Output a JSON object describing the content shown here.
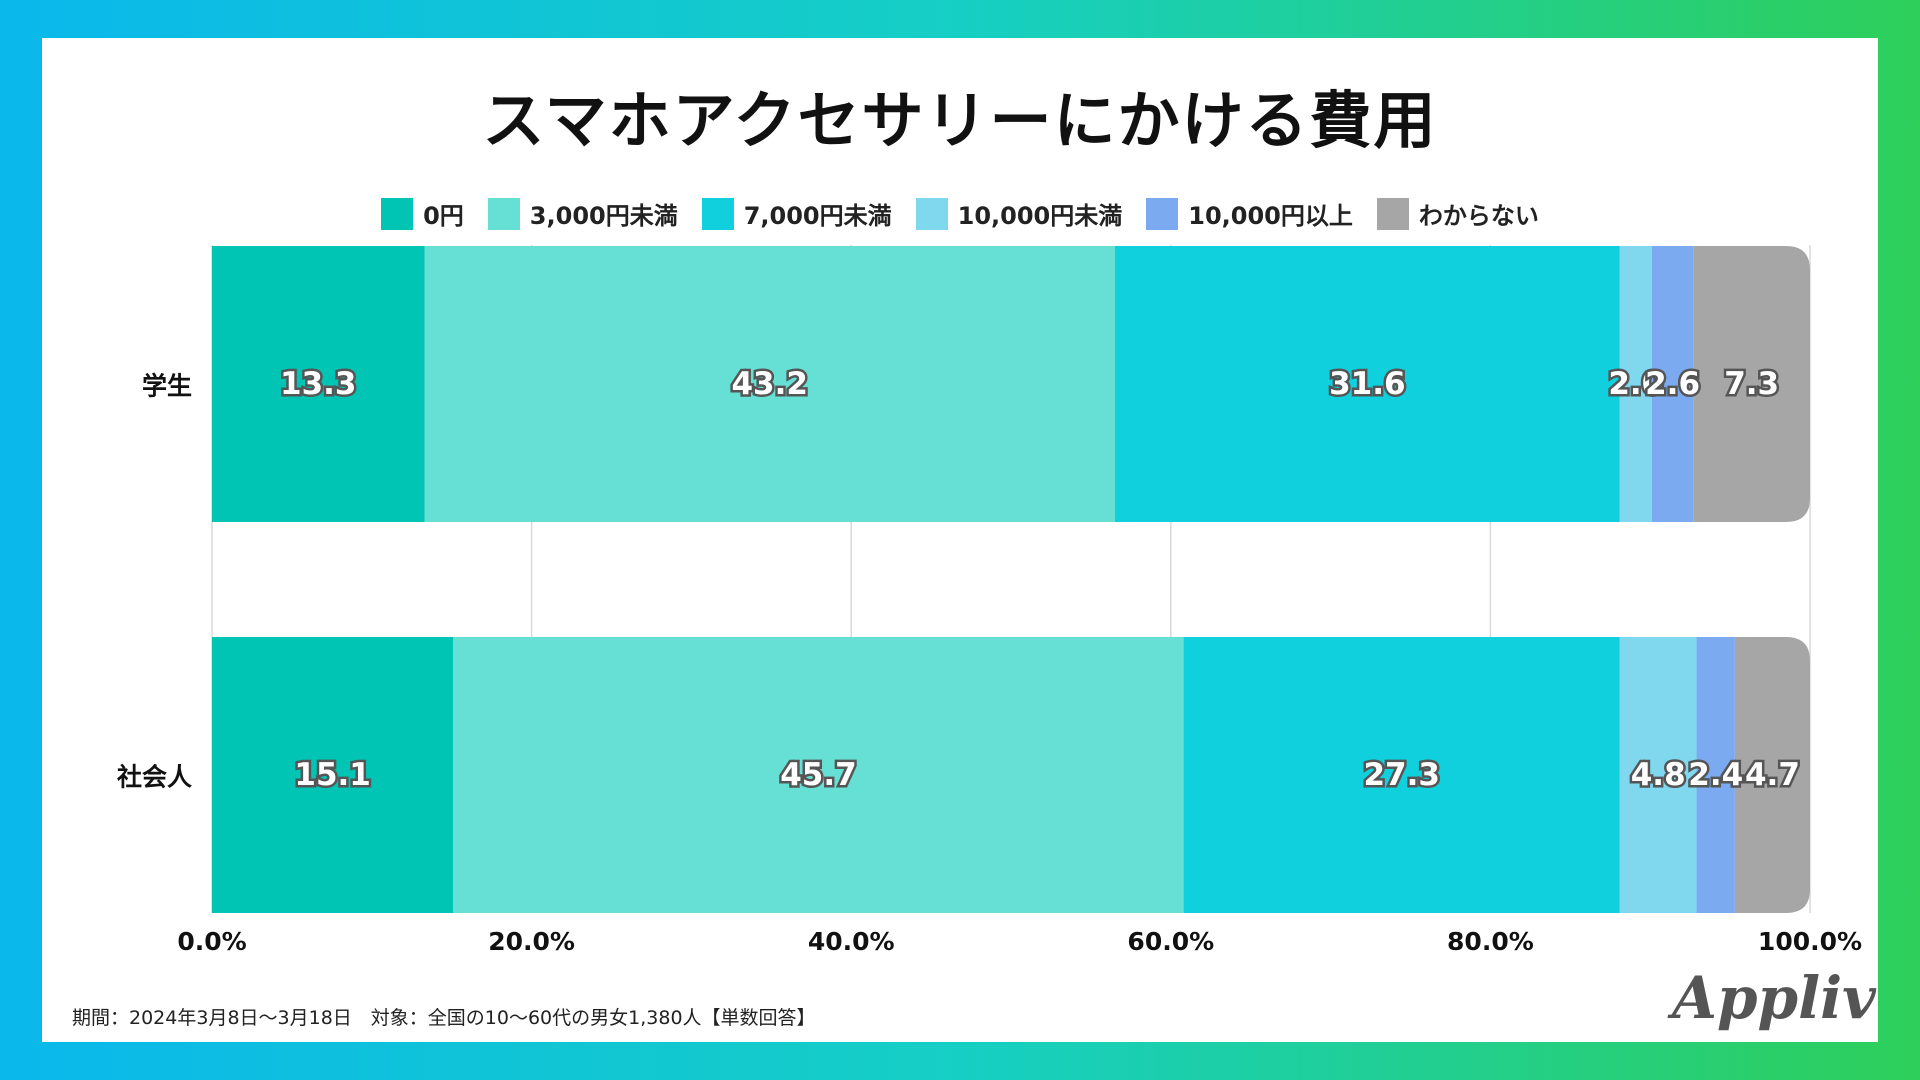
{
  "chart_data": {
    "type": "bar",
    "orientation": "horizontal",
    "stacked": true,
    "title": "スマホアクセサリーにかける費用",
    "categories": [
      "学生",
      "社会人"
    ],
    "series": [
      {
        "name": "0円",
        "color": "#00c4b4",
        "values": [
          13.3,
          15.1
        ]
      },
      {
        "name": "3,000円未満",
        "color": "#66e0d4",
        "values": [
          43.2,
          45.7
        ]
      },
      {
        "name": "7,000円未満",
        "color": "#10d0de",
        "values": [
          31.6,
          27.3
        ]
      },
      {
        "name": "10,000円未満",
        "color": "#7fd8ee",
        "values": [
          2.0,
          4.8
        ]
      },
      {
        "name": "10,000円以上",
        "color": "#7caaf0",
        "values": [
          2.6,
          2.4
        ]
      },
      {
        "name": "わからない",
        "color": "#a6a6a6",
        "values": [
          7.3,
          4.7
        ]
      }
    ],
    "xlim": [
      0,
      100
    ],
    "xticks": [
      "0.0%",
      "20.0%",
      "40.0%",
      "60.0%",
      "80.0%",
      "100.0%"
    ],
    "grid": true,
    "legend_position": "top"
  },
  "footnote": "期間：2024年3月8日〜3月18日　対象：全国の10〜60代の男女1,380人【単数回答】",
  "brand": "Appliv"
}
